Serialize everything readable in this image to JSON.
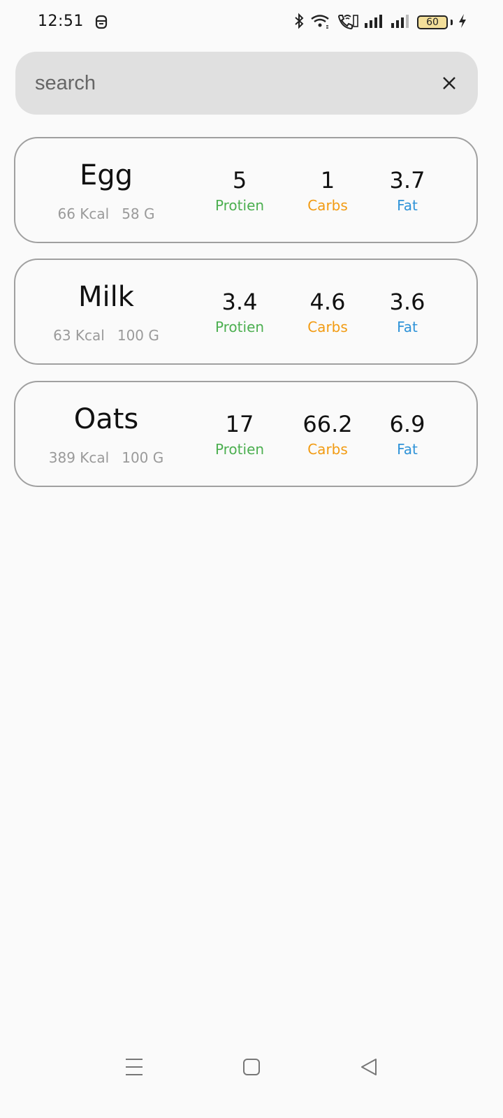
{
  "status_bar": {
    "time": "12:51",
    "battery": "60",
    "icons": [
      "status-face-icon",
      "bluetooth-icon",
      "wifi-icon",
      "volte-call-icon",
      "signal-icon",
      "signal-icon",
      "battery-icon",
      "charging-icon"
    ]
  },
  "search": {
    "placeholder": "search",
    "value": "",
    "clear_icon": "close-icon"
  },
  "foods": [
    {
      "name": "Egg",
      "kcal": "66 Kcal",
      "grams": "58 G",
      "protein": "5",
      "carbs": "1",
      "fat": "3.7"
    },
    {
      "name": "Milk",
      "kcal": "63 Kcal",
      "grams": "100 G",
      "protein": "3.4",
      "carbs": "4.6",
      "fat": "3.6"
    },
    {
      "name": "Oats",
      "kcal": "389 Kcal",
      "grams": "100 G",
      "protein": "17",
      "carbs": "66.2",
      "fat": "6.9"
    }
  ],
  "labels": {
    "protein": "Protien",
    "carbs": "Carbs",
    "fat": "Fat"
  },
  "colors": {
    "protein": "#4caf50",
    "carbs": "#f29b12",
    "fat": "#2f93d8",
    "card_border": "#a0a0a0",
    "search_bg": "#e0e0e0"
  },
  "nav_bar": {
    "icons": [
      "menu-icon",
      "home-icon",
      "back-icon"
    ]
  }
}
